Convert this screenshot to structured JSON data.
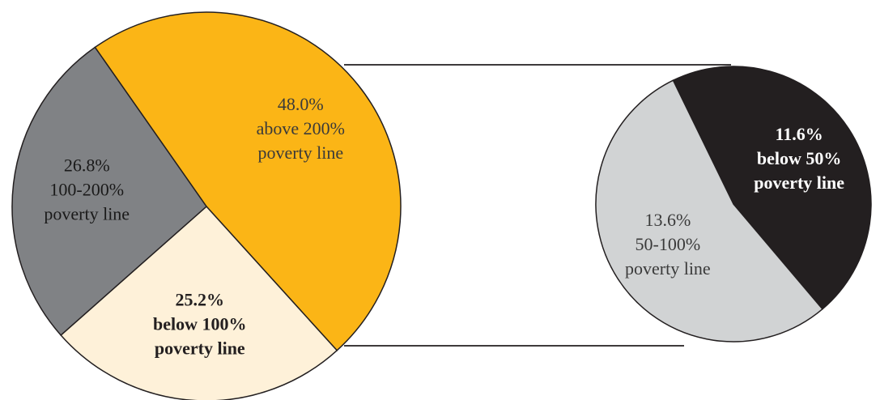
{
  "chart_data": [
    {
      "type": "pie",
      "slices": [
        {
          "value": 48.0,
          "pct_text": "48.0%",
          "line1": "above 200%",
          "line2": "poverty line",
          "color": "#FBB516",
          "text_color": "#3a3a3a",
          "bold": false
        },
        {
          "value": 25.2,
          "pct_text": "25.2%",
          "line1": "below 100%",
          "line2": "poverty line",
          "color": "#FEF1D9",
          "text_color": "#231F20",
          "bold": true
        },
        {
          "value": 26.8,
          "pct_text": "26.8%",
          "line1": "100-200%",
          "line2": "poverty line",
          "color": "#808285",
          "text_color": "#1a1a1a",
          "bold": false
        }
      ]
    },
    {
      "type": "pie",
      "slices": [
        {
          "value": 11.6,
          "pct_text": "11.6%",
          "line1": "below 50%",
          "line2": "poverty line",
          "color": "#231F20",
          "text_color": "#ffffff",
          "bold": true
        },
        {
          "value": 13.6,
          "pct_text": "13.6%",
          "line1": "50-100%",
          "line2": "poverty line",
          "color": "#D1D3D4",
          "text_color": "#3a3a3a",
          "bold": false
        }
      ]
    }
  ]
}
